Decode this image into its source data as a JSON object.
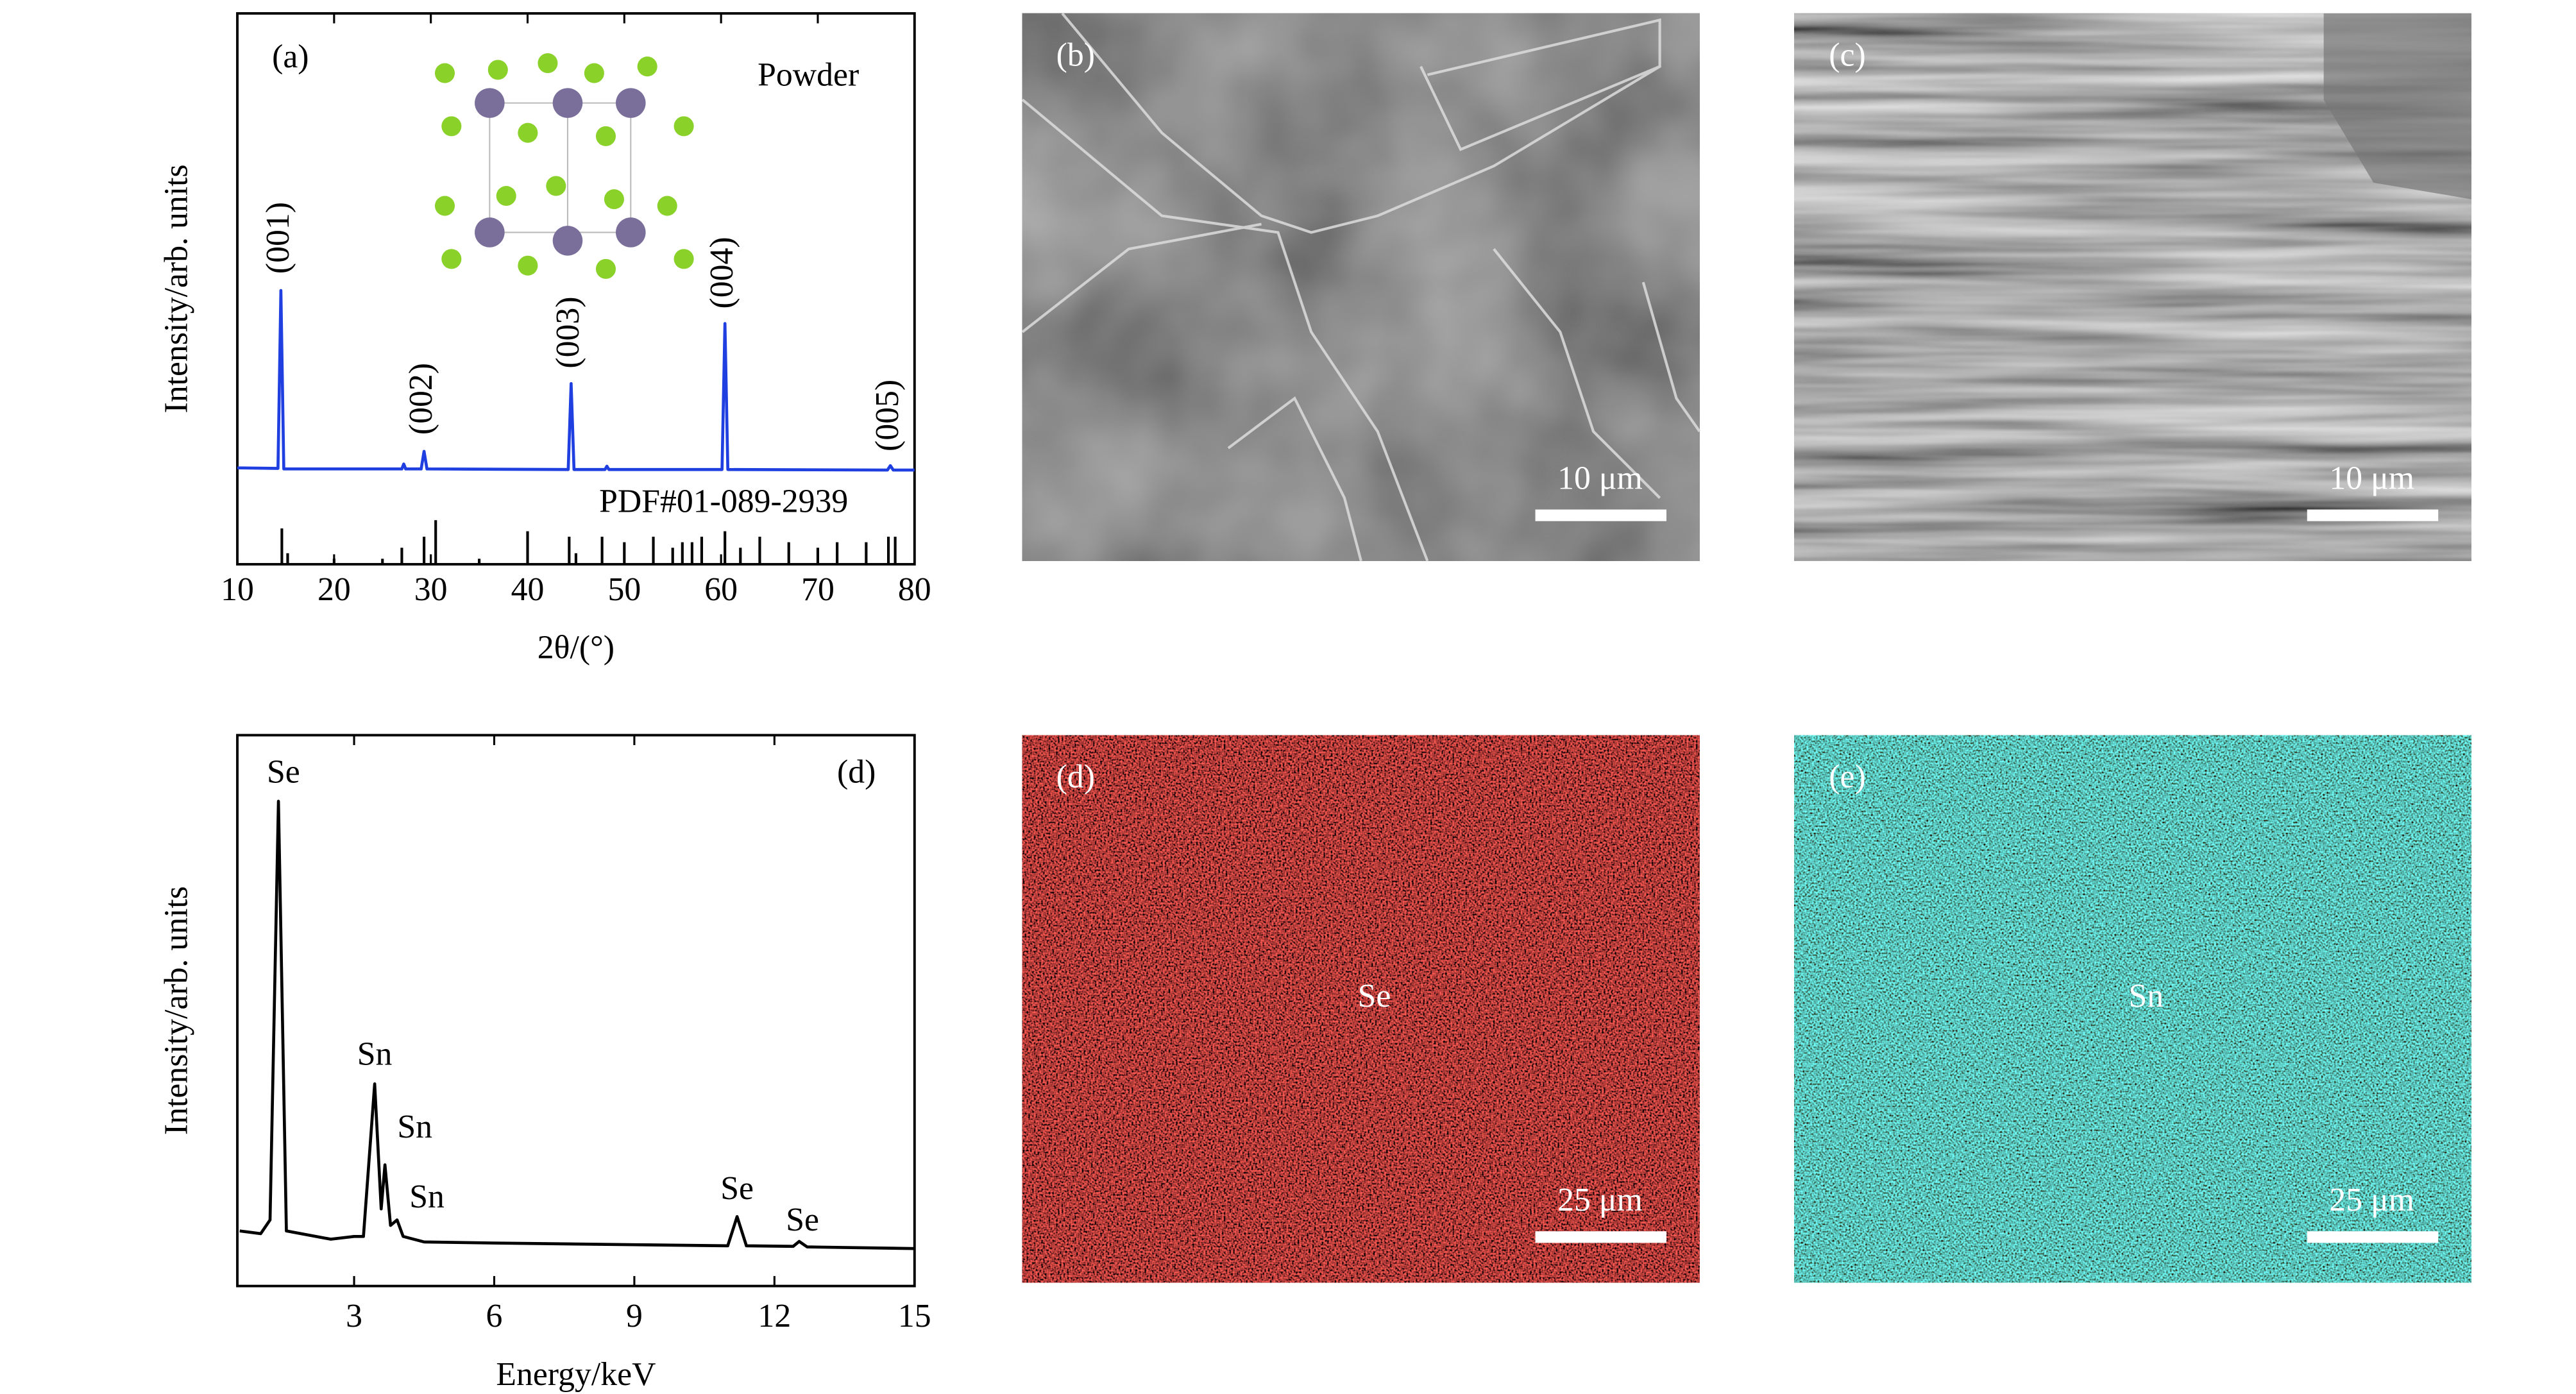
{
  "chart_data": [
    {
      "type": "line",
      "panel_label": "(a)",
      "sample": "Powder",
      "xlabel": "2θ/(°)",
      "ylabel": "Intensity/arb. units",
      "xlim": [
        10,
        80
      ],
      "xticks": [
        10,
        20,
        30,
        40,
        50,
        60,
        70,
        80
      ],
      "ylim": [
        0,
        100
      ],
      "color": "#1f3fe0",
      "x": [
        10,
        14.2,
        14.5,
        14.8,
        27,
        27.2,
        27.4,
        29.0,
        29.3,
        29.6,
        44.2,
        44.5,
        44.8,
        48,
        48.2,
        48.4,
        60.1,
        60.4,
        60.7,
        77.2,
        77.5,
        77.8,
        80
      ],
      "values": [
        17.5,
        17.4,
        49.7,
        17.3,
        17.3,
        18.2,
        17.3,
        17.3,
        20.5,
        17.3,
        17.2,
        32.8,
        17.2,
        17.2,
        17.8,
        17.2,
        17.2,
        43.7,
        17.2,
        17.1,
        17.9,
        17.1,
        17.1
      ],
      "peak_labels": [
        {
          "text": "(001)",
          "x": 14.5
        },
        {
          "text": "(002)",
          "x": 29.3
        },
        {
          "text": "(003)",
          "x": 44.5
        },
        {
          "text": "(004)",
          "x": 60.4
        },
        {
          "text": "(005)",
          "x": 77.5
        }
      ],
      "reference": {
        "label": "PDF#01-089-2939",
        "x": [
          14.6,
          15.2,
          20,
          25,
          27,
          29.3,
          30.5,
          35,
          40,
          44.3,
          45,
          47.7,
          50,
          53,
          55,
          56,
          57,
          58,
          60.4,
          62,
          64,
          67,
          70,
          72,
          75,
          77.3,
          78
        ],
        "values": [
          6.5,
          2,
          1,
          1,
          3,
          5,
          8,
          1,
          6,
          5,
          2,
          5,
          4,
          5,
          3,
          4,
          4,
          5,
          6,
          3,
          5,
          4,
          3,
          4,
          4,
          5,
          5
        ]
      }
    },
    {
      "type": "line",
      "panel_label": "(d)",
      "xlabel": "Energy/keV",
      "ylabel": "Intensity/arb. units",
      "xlim": [
        0.5,
        15
      ],
      "xticks": [
        3,
        6,
        9,
        12,
        15
      ],
      "ylim": [
        0,
        100
      ],
      "color": "#000000",
      "x": [
        0.55,
        1.0,
        1.2,
        1.38,
        1.55,
        2.5,
        3.0,
        3.2,
        3.44,
        3.58,
        3.66,
        3.78,
        3.92,
        4.05,
        4.5,
        6,
        9,
        11.0,
        11.2,
        11.4,
        12.4,
        12.53,
        12.7,
        15
      ],
      "values": [
        10,
        9.5,
        12,
        88,
        10,
        8.5,
        9,
        9,
        36.7,
        14,
        22,
        11,
        12,
        9,
        8,
        7.8,
        7.5,
        7.3,
        12.6,
        7.3,
        7.2,
        8.1,
        7.1,
        6.8
      ],
      "peak_labels": [
        {
          "text": "Se",
          "x": 1.38
        },
        {
          "text": "Sn",
          "x": 3.44
        },
        {
          "text": "Sn",
          "x": 3.66
        },
        {
          "text": "Sn",
          "x": 3.92
        },
        {
          "text": "Se",
          "x": 11.2
        },
        {
          "text": "Se",
          "x": 12.53
        }
      ]
    }
  ],
  "images": [
    {
      "label": "(b)",
      "scale_bar": "10 μm"
    },
    {
      "label": "(c)",
      "scale_bar": "10 μm"
    },
    {
      "label": "(d)",
      "scale_bar": "25 μm",
      "element": "Se"
    },
    {
      "label": "(e)",
      "scale_bar": "25 μm",
      "element": "Sn"
    }
  ]
}
